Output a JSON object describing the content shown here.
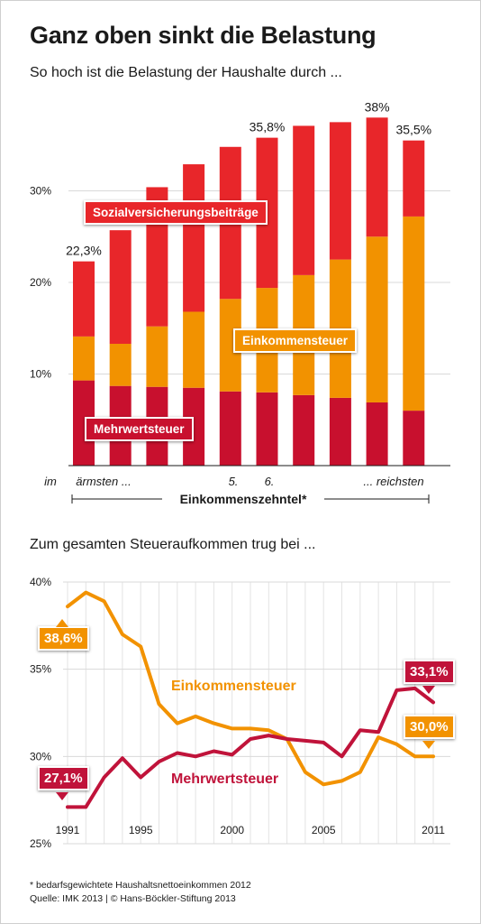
{
  "title": "Ganz oben sinkt die Belastung",
  "subtitle": "So hoch ist die Belastung der Haushalte durch ...",
  "subtitle2": "Zum gesamten Steueraufkommen trug bei ...",
  "colors": {
    "red": "#e8262a",
    "orange": "#f29200",
    "crimson": "#c8102e",
    "line_red": "#c0133a",
    "line_orange": "#f29200",
    "grid": "#d9d9d9"
  },
  "chart_data": [
    {
      "type": "bar",
      "stacked": true,
      "ylim": [
        0,
        38
      ],
      "yticks": [
        10,
        20,
        30
      ],
      "ytick_labels": [
        "10%",
        "20%",
        "30%"
      ],
      "xlabel": "Einkommenszehntel*",
      "x_axis_labels": [
        {
          "text": "im",
          "at": 0
        },
        {
          "text": "ärmsten ...",
          "at": 1
        },
        {
          "text": "5.",
          "at": 5
        },
        {
          "text": "6.",
          "at": 6
        },
        {
          "text": "... reichsten",
          "at": 10
        }
      ],
      "categories": [
        "1",
        "2",
        "3",
        "4",
        "5",
        "6",
        "7",
        "8",
        "9",
        "10"
      ],
      "series": [
        {
          "name": "Mehrwertsteuer",
          "color": "#c8102e",
          "values": [
            9.3,
            8.7,
            8.6,
            8.5,
            8.1,
            8.0,
            7.7,
            7.4,
            6.9,
            6.0
          ]
        },
        {
          "name": "Einkommensteuer",
          "color": "#f29200",
          "values": [
            4.8,
            4.6,
            6.6,
            8.3,
            10.1,
            11.4,
            13.1,
            15.1,
            18.1,
            21.2
          ]
        },
        {
          "name": "Sozialversicherungsbeiträge",
          "color": "#e8262a",
          "values": [
            8.2,
            12.4,
            15.2,
            16.1,
            16.6,
            16.4,
            16.3,
            15.0,
            13.0,
            8.3
          ]
        }
      ],
      "data_labels": [
        {
          "index": 0,
          "text": "22,3%"
        },
        {
          "index": 5,
          "text": "35,8%"
        },
        {
          "index": 8,
          "text": "38%"
        },
        {
          "index": 9,
          "text": "35,5%"
        }
      ]
    },
    {
      "type": "line",
      "ylim": [
        25,
        40
      ],
      "yticks": [
        25,
        30,
        35,
        40
      ],
      "ytick_labels": [
        "25%",
        "30%",
        "35%",
        "40%"
      ],
      "x": [
        1991,
        1992,
        1993,
        1994,
        1995,
        1996,
        1997,
        1998,
        1999,
        2000,
        2001,
        2002,
        2003,
        2004,
        2005,
        2006,
        2007,
        2008,
        2009,
        2010,
        2011
      ],
      "xticks": [
        1991,
        1995,
        2000,
        2005,
        2011
      ],
      "series": [
        {
          "name": "Einkommensteuer",
          "color": "#f29200",
          "values": [
            38.6,
            39.4,
            38.9,
            37.0,
            36.3,
            33.0,
            31.9,
            32.3,
            31.9,
            31.6,
            31.6,
            31.5,
            31.0,
            29.1,
            28.4,
            28.6,
            29.1,
            31.1,
            30.7,
            30.0,
            30.0
          ]
        },
        {
          "name": "Mehrwertsteuer",
          "color": "#c0133a",
          "values": [
            27.1,
            27.1,
            28.8,
            29.9,
            28.8,
            29.7,
            30.2,
            30.0,
            30.3,
            30.1,
            31.0,
            31.2,
            31.0,
            30.9,
            30.8,
            30.0,
            31.5,
            31.4,
            33.8,
            33.9,
            33.1
          ]
        }
      ],
      "data_labels": [
        {
          "text": "38,6%",
          "color": "#f29200"
        },
        {
          "text": "27,1%",
          "color": "#c0133a"
        },
        {
          "text": "33,1%",
          "color": "#c0133a"
        },
        {
          "text": "30,0%",
          "color": "#f29200"
        }
      ]
    }
  ],
  "footnote": {
    "line1": "* bedarfsgewichtete Haushaltsnettoeinkommen 2012",
    "line2": "Quelle: IMK 2013 | © Hans-Böckler-Stiftung 2013"
  }
}
